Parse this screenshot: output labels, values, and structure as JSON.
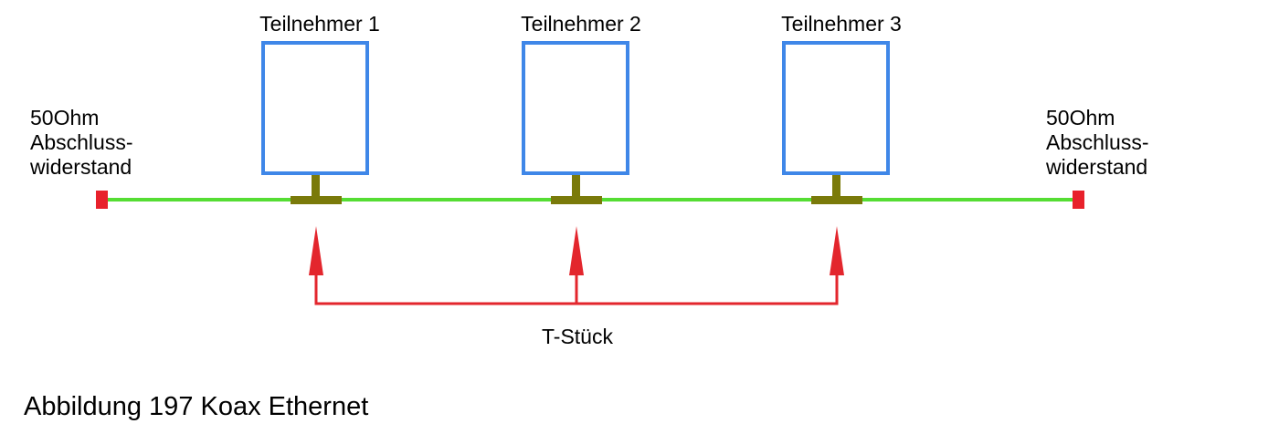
{
  "participants": [
    {
      "label": "Teilnehmer 1"
    },
    {
      "label": "Teilnehmer 2"
    },
    {
      "label": "Teilnehmer 3"
    }
  ],
  "terminators": {
    "left": {
      "line1": "50Ohm",
      "line2": "Abschluss-",
      "line3": "widerstand"
    },
    "right": {
      "line1": "50Ohm",
      "line2": "Abschluss-",
      "line3": "widerstand"
    }
  },
  "t_piece_label": "T-Stück",
  "caption": "Abbildung 197 Koax Ethernet",
  "colors": {
    "box": "#3f87e8",
    "cable": "#55dd33",
    "connector": "#7a7a0a",
    "terminator": "#e8212b",
    "arrow": "#e3262d"
  }
}
